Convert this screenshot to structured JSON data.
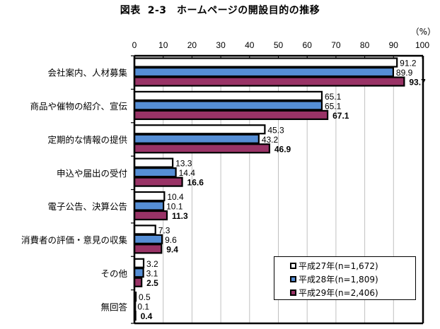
{
  "chart_data": {
    "type": "bar",
    "orientation": "horizontal",
    "title_prefix": "図表",
    "title": "2-3　ホームページの開設目的の推移",
    "unit_label": "（%）",
    "xlabel": "",
    "ylabel": "",
    "xlim": [
      0,
      100
    ],
    "x_ticks": [
      0,
      10,
      20,
      30,
      40,
      50,
      60,
      70,
      80,
      90,
      100
    ],
    "grid": true,
    "legend_position": "bottom-right",
    "categories": [
      "会社案内、人材募集",
      "商品や催物の紹介、宣伝",
      "定期的な情報の提供",
      "申込や届出の受付",
      "電子公告、決算公告",
      "消費者の評価・意見の収集",
      "その他",
      "無回答"
    ],
    "series": [
      {
        "name": "平成27年(n=1,672)",
        "color": "#ffffff",
        "label_bold": false,
        "values": [
          91.2,
          65.1,
          45.3,
          13.3,
          10.4,
          7.3,
          3.2,
          0.5
        ]
      },
      {
        "name": "平成28年(n=1,809)",
        "color": "#558ed5",
        "label_bold": false,
        "values": [
          89.9,
          65.1,
          43.2,
          14.4,
          10.1,
          9.6,
          3.1,
          0.1
        ]
      },
      {
        "name": "平成29年(n=2,406)",
        "color": "#993366",
        "label_bold": true,
        "values": [
          93.7,
          67.1,
          46.9,
          16.6,
          11.3,
          9.4,
          2.5,
          0.4
        ]
      }
    ]
  }
}
